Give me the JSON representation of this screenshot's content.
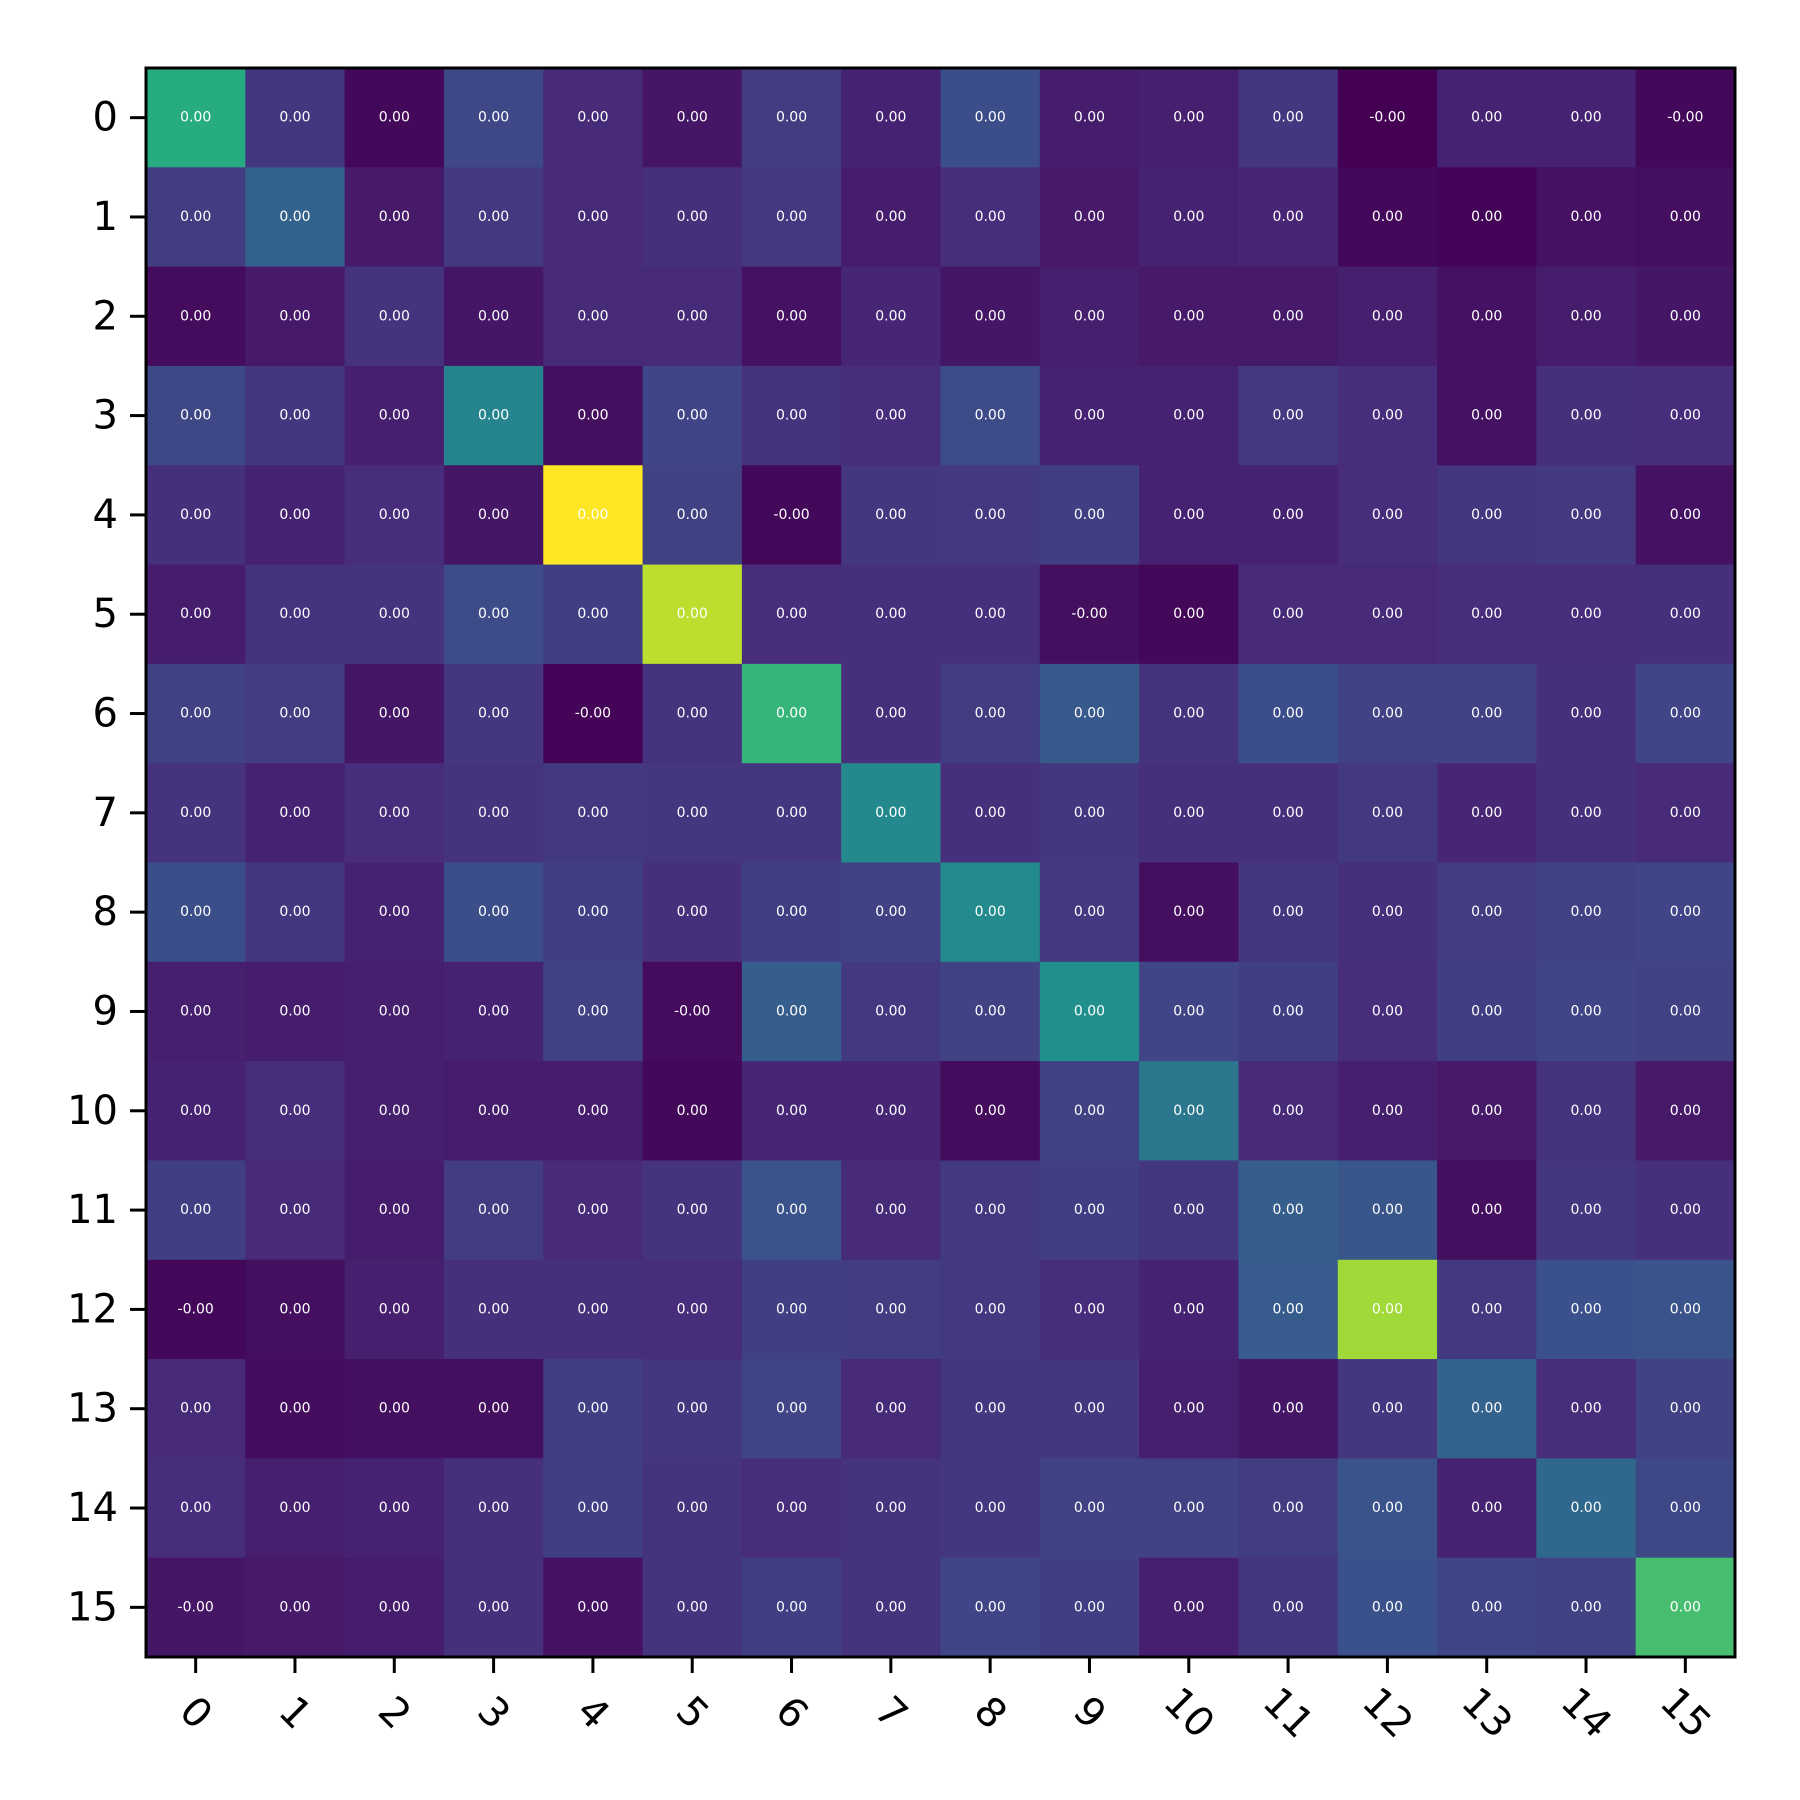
{
  "chart_data": {
    "type": "heatmap",
    "colormap": "viridis",
    "title": "",
    "xlabel": "",
    "ylabel": "",
    "x_tick_labels": [
      "0",
      "1",
      "2",
      "3",
      "4",
      "5",
      "6",
      "7",
      "8",
      "9",
      "10",
      "11",
      "12",
      "13",
      "14",
      "15"
    ],
    "y_tick_labels": [
      "0",
      "1",
      "2",
      "3",
      "4",
      "5",
      "6",
      "7",
      "8",
      "9",
      "10",
      "11",
      "12",
      "13",
      "14",
      "15"
    ],
    "x_tick_rotation_deg": 45,
    "grid": false,
    "cell_labels": [
      [
        "0.00",
        "0.00",
        "0.00",
        "0.00",
        "0.00",
        "0.00",
        "0.00",
        "0.00",
        "0.00",
        "0.00",
        "0.00",
        "0.00",
        "-0.00",
        "0.00",
        "0.00",
        "-0.00"
      ],
      [
        "0.00",
        "0.00",
        "0.00",
        "0.00",
        "0.00",
        "0.00",
        "0.00",
        "0.00",
        "0.00",
        "0.00",
        "0.00",
        "0.00",
        "0.00",
        "0.00",
        "0.00",
        "0.00"
      ],
      [
        "0.00",
        "0.00",
        "0.00",
        "0.00",
        "0.00",
        "0.00",
        "0.00",
        "0.00",
        "0.00",
        "0.00",
        "0.00",
        "0.00",
        "0.00",
        "0.00",
        "0.00",
        "0.00"
      ],
      [
        "0.00",
        "0.00",
        "0.00",
        "0.00",
        "0.00",
        "0.00",
        "0.00",
        "0.00",
        "0.00",
        "0.00",
        "0.00",
        "0.00",
        "0.00",
        "0.00",
        "0.00",
        "0.00"
      ],
      [
        "0.00",
        "0.00",
        "0.00",
        "0.00",
        "0.00",
        "0.00",
        "-0.00",
        "0.00",
        "0.00",
        "0.00",
        "0.00",
        "0.00",
        "0.00",
        "0.00",
        "0.00",
        "0.00"
      ],
      [
        "0.00",
        "0.00",
        "0.00",
        "0.00",
        "0.00",
        "0.00",
        "0.00",
        "0.00",
        "0.00",
        "-0.00",
        "0.00",
        "0.00",
        "0.00",
        "0.00",
        "0.00",
        "0.00"
      ],
      [
        "0.00",
        "0.00",
        "0.00",
        "0.00",
        "-0.00",
        "0.00",
        "0.00",
        "0.00",
        "0.00",
        "0.00",
        "0.00",
        "0.00",
        "0.00",
        "0.00",
        "0.00",
        "0.00"
      ],
      [
        "0.00",
        "0.00",
        "0.00",
        "0.00",
        "0.00",
        "0.00",
        "0.00",
        "0.00",
        "0.00",
        "0.00",
        "0.00",
        "0.00",
        "0.00",
        "0.00",
        "0.00",
        "0.00"
      ],
      [
        "0.00",
        "0.00",
        "0.00",
        "0.00",
        "0.00",
        "0.00",
        "0.00",
        "0.00",
        "0.00",
        "0.00",
        "0.00",
        "0.00",
        "0.00",
        "0.00",
        "0.00",
        "0.00"
      ],
      [
        "0.00",
        "0.00",
        "0.00",
        "0.00",
        "0.00",
        "-0.00",
        "0.00",
        "0.00",
        "0.00",
        "0.00",
        "0.00",
        "0.00",
        "0.00",
        "0.00",
        "0.00",
        "0.00"
      ],
      [
        "0.00",
        "0.00",
        "0.00",
        "0.00",
        "0.00",
        "0.00",
        "0.00",
        "0.00",
        "0.00",
        "0.00",
        "0.00",
        "0.00",
        "0.00",
        "0.00",
        "0.00",
        "0.00"
      ],
      [
        "0.00",
        "0.00",
        "0.00",
        "0.00",
        "0.00",
        "0.00",
        "0.00",
        "0.00",
        "0.00",
        "0.00",
        "0.00",
        "0.00",
        "0.00",
        "0.00",
        "0.00",
        "0.00"
      ],
      [
        "-0.00",
        "0.00",
        "0.00",
        "0.00",
        "0.00",
        "0.00",
        "0.00",
        "0.00",
        "0.00",
        "0.00",
        "0.00",
        "0.00",
        "0.00",
        "0.00",
        "0.00",
        "0.00"
      ],
      [
        "0.00",
        "0.00",
        "0.00",
        "0.00",
        "0.00",
        "0.00",
        "0.00",
        "0.00",
        "0.00",
        "0.00",
        "0.00",
        "0.00",
        "0.00",
        "0.00",
        "0.00",
        "0.00"
      ],
      [
        "0.00",
        "0.00",
        "0.00",
        "0.00",
        "0.00",
        "0.00",
        "0.00",
        "0.00",
        "0.00",
        "0.00",
        "0.00",
        "0.00",
        "0.00",
        "0.00",
        "0.00",
        "0.00"
      ],
      [
        "-0.00",
        "0.00",
        "0.00",
        "0.00",
        "0.00",
        "0.00",
        "0.00",
        "0.00",
        "0.00",
        "0.00",
        "0.00",
        "0.00",
        "0.00",
        "0.00",
        "0.00",
        "0.00"
      ]
    ],
    "color_level": [
      [
        0.62,
        0.16,
        0.02,
        0.22,
        0.12,
        0.06,
        0.18,
        0.1,
        0.24,
        0.08,
        0.09,
        0.16,
        0.0,
        0.1,
        0.1,
        0.02
      ],
      [
        0.18,
        0.32,
        0.07,
        0.17,
        0.12,
        0.14,
        0.17,
        0.08,
        0.13,
        0.07,
        0.1,
        0.11,
        0.02,
        0.01,
        0.05,
        0.04
      ],
      [
        0.03,
        0.07,
        0.15,
        0.06,
        0.12,
        0.12,
        0.05,
        0.11,
        0.06,
        0.09,
        0.07,
        0.07,
        0.09,
        0.05,
        0.08,
        0.06
      ],
      [
        0.22,
        0.16,
        0.09,
        0.45,
        0.04,
        0.21,
        0.15,
        0.13,
        0.23,
        0.1,
        0.1,
        0.17,
        0.13,
        0.05,
        0.14,
        0.13
      ],
      [
        0.14,
        0.1,
        0.13,
        0.06,
        1.0,
        0.2,
        0.02,
        0.16,
        0.17,
        0.19,
        0.1,
        0.1,
        0.13,
        0.16,
        0.17,
        0.05
      ],
      [
        0.08,
        0.15,
        0.15,
        0.23,
        0.19,
        0.9,
        0.13,
        0.14,
        0.14,
        0.04,
        0.02,
        0.12,
        0.12,
        0.13,
        0.13,
        0.14
      ],
      [
        0.2,
        0.18,
        0.06,
        0.16,
        0.01,
        0.15,
        0.66,
        0.14,
        0.18,
        0.28,
        0.15,
        0.24,
        0.2,
        0.2,
        0.14,
        0.21
      ],
      [
        0.15,
        0.1,
        0.13,
        0.15,
        0.17,
        0.16,
        0.16,
        0.47,
        0.14,
        0.16,
        0.14,
        0.14,
        0.17,
        0.11,
        0.14,
        0.12
      ],
      [
        0.24,
        0.16,
        0.1,
        0.24,
        0.19,
        0.14,
        0.19,
        0.2,
        0.48,
        0.17,
        0.04,
        0.16,
        0.14,
        0.18,
        0.2,
        0.21
      ],
      [
        0.09,
        0.08,
        0.09,
        0.1,
        0.2,
        0.03,
        0.3,
        0.17,
        0.2,
        0.5,
        0.21,
        0.19,
        0.13,
        0.19,
        0.21,
        0.2
      ],
      [
        0.1,
        0.13,
        0.09,
        0.08,
        0.08,
        0.02,
        0.11,
        0.11,
        0.03,
        0.2,
        0.4,
        0.12,
        0.09,
        0.07,
        0.15,
        0.07
      ],
      [
        0.19,
        0.12,
        0.08,
        0.18,
        0.12,
        0.15,
        0.26,
        0.12,
        0.17,
        0.19,
        0.16,
        0.3,
        0.27,
        0.04,
        0.16,
        0.14
      ],
      [
        0.02,
        0.04,
        0.09,
        0.14,
        0.14,
        0.13,
        0.19,
        0.18,
        0.17,
        0.13,
        0.1,
        0.29,
        0.86,
        0.17,
        0.25,
        0.26
      ],
      [
        0.12,
        0.03,
        0.04,
        0.04,
        0.19,
        0.16,
        0.21,
        0.12,
        0.16,
        0.16,
        0.09,
        0.06,
        0.16,
        0.32,
        0.13,
        0.2
      ],
      [
        0.13,
        0.09,
        0.1,
        0.14,
        0.19,
        0.15,
        0.13,
        0.15,
        0.16,
        0.2,
        0.2,
        0.18,
        0.26,
        0.1,
        0.34,
        0.22
      ],
      [
        0.06,
        0.07,
        0.08,
        0.14,
        0.05,
        0.15,
        0.19,
        0.15,
        0.21,
        0.19,
        0.09,
        0.16,
        0.25,
        0.21,
        0.2,
        0.7
      ]
    ]
  }
}
